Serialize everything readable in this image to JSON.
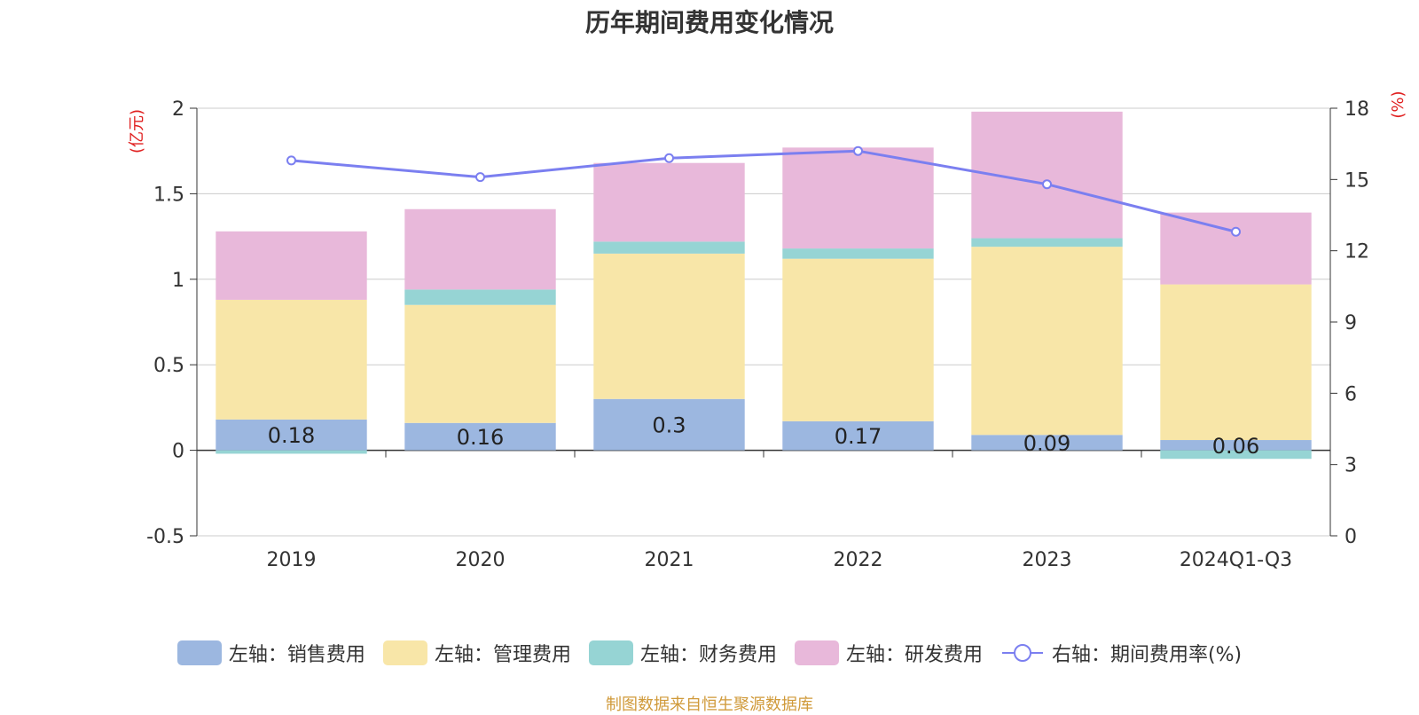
{
  "chart_data": {
    "type": "bar",
    "title": "历年期间费用变化情况",
    "categories": [
      "2019",
      "2020",
      "2021",
      "2022",
      "2023",
      "2024Q1-Q3"
    ],
    "series": [
      {
        "name": "左轴：销售费用",
        "axis": "left",
        "color": "#9cb7e0",
        "values": [
          0.18,
          0.16,
          0.3,
          0.17,
          0.09,
          0.06
        ],
        "labels": [
          "0.18",
          "0.16",
          "0.3",
          "0.17",
          "0.09",
          "0.06"
        ]
      },
      {
        "name": "左轴：管理费用",
        "axis": "left",
        "color": "#f8e6a8",
        "values": [
          0.7,
          0.69,
          0.85,
          0.95,
          1.1,
          0.91
        ]
      },
      {
        "name": "左轴：财务费用",
        "axis": "left",
        "color": "#96d4d4",
        "values": [
          -0.02,
          0.09,
          0.07,
          0.06,
          0.05,
          -0.05
        ]
      },
      {
        "name": "左轴：研发费用",
        "axis": "left",
        "color": "#e8b8da",
        "values": [
          0.4,
          0.47,
          0.46,
          0.59,
          0.74,
          0.42
        ]
      },
      {
        "name": "右轴：期间费用率(%)",
        "axis": "right",
        "type": "line",
        "color": "#7b7ff0",
        "values": [
          15.8,
          15.1,
          15.9,
          16.2,
          14.8,
          12.8
        ]
      }
    ],
    "left_axis": {
      "unit": "(亿元)",
      "ylim": [
        -0.5,
        2
      ],
      "ticks": [
        "-0.5",
        "0",
        "0.5",
        "1",
        "1.5",
        "2"
      ]
    },
    "right_axis": {
      "unit": "(%)",
      "ylim": [
        0,
        18
      ],
      "ticks": [
        "0",
        "3",
        "6",
        "9",
        "12",
        "15",
        "18"
      ]
    },
    "grid": true,
    "legend_position": "bottom",
    "source": "制图数据来自恒生聚源数据库"
  }
}
